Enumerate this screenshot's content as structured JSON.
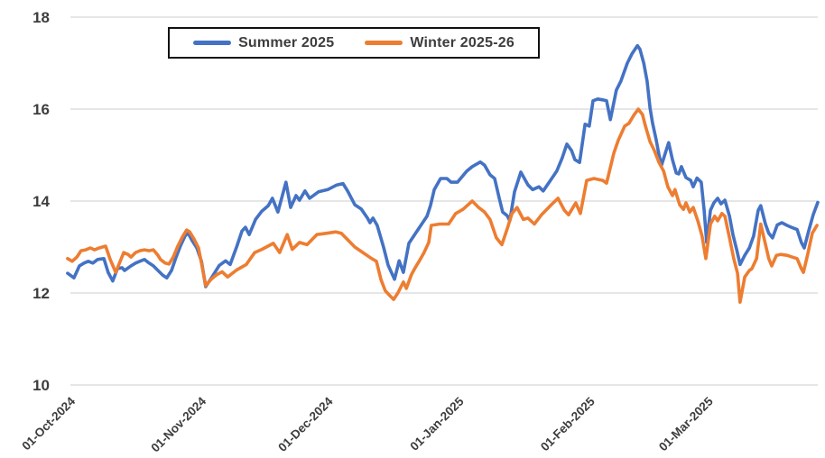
{
  "chart_data": {
    "type": "line",
    "title": "",
    "xlabel": "",
    "ylabel": "",
    "grid": "horizontal",
    "legend_position": "top-center",
    "background_color": "#ffffff",
    "gridline_color": "#d6d6d6",
    "axis_text_color": "#3d3d3d",
    "y_axis": {
      "ticks": [
        10,
        12,
        14,
        16,
        18
      ],
      "range": [
        10,
        18
      ]
    },
    "x_axis": {
      "unit": "days since 01-Oct-2024",
      "tick_labels": [
        "01-Oct-2024",
        "01-Nov-2024",
        "01-Dec-2024",
        "01-Jan-2025",
        "01-Feb-2025",
        "01-Mar-2025"
      ],
      "tick_days": [
        0,
        31,
        61,
        92,
        123,
        151
      ]
    },
    "series": [
      {
        "name": "Summer 2025",
        "color": "#4472C4",
        "points": [
          [
            -1.1,
            12.43
          ],
          [
            0.4,
            12.33
          ],
          [
            1.7,
            12.59
          ],
          [
            2.8,
            12.65
          ],
          [
            3.8,
            12.69
          ],
          [
            4.9,
            12.65
          ],
          [
            6,
            12.73
          ],
          [
            7.5,
            12.75
          ],
          [
            8.5,
            12.45
          ],
          [
            9.6,
            12.26
          ],
          [
            10.7,
            12.53
          ],
          [
            11.8,
            12.55
          ],
          [
            12.4,
            12.49
          ],
          [
            13.9,
            12.59
          ],
          [
            15,
            12.65
          ],
          [
            16,
            12.69
          ],
          [
            17.1,
            12.73
          ],
          [
            18.2,
            12.65
          ],
          [
            19.2,
            12.59
          ],
          [
            20.3,
            12.49
          ],
          [
            21.4,
            12.39
          ],
          [
            22.4,
            12.33
          ],
          [
            23.5,
            12.49
          ],
          [
            24.6,
            12.78
          ],
          [
            25.6,
            13.02
          ],
          [
            26.7,
            13.24
          ],
          [
            27.4,
            13.31
          ],
          [
            28.4,
            13.14
          ],
          [
            29.5,
            12.98
          ],
          [
            30.6,
            12.69
          ],
          [
            31.6,
            12.14
          ],
          [
            33.1,
            12.35
          ],
          [
            34.8,
            12.6
          ],
          [
            36.3,
            12.7
          ],
          [
            37.4,
            12.62
          ],
          [
            38.9,
            13
          ],
          [
            40.2,
            13.35
          ],
          [
            41,
            13.43
          ],
          [
            41.9,
            13.27
          ],
          [
            43.4,
            13.6
          ],
          [
            44.9,
            13.78
          ],
          [
            46.4,
            13.9
          ],
          [
            47.4,
            14.06
          ],
          [
            48.7,
            13.76
          ],
          [
            50.6,
            14.41
          ],
          [
            51.7,
            13.86
          ],
          [
            53,
            14.12
          ],
          [
            53.8,
            14.02
          ],
          [
            55.1,
            14.22
          ],
          [
            56.2,
            14.06
          ],
          [
            58.3,
            14.2
          ],
          [
            60.5,
            14.25
          ],
          [
            62.6,
            14.35
          ],
          [
            64.1,
            14.38
          ],
          [
            65.2,
            14.22
          ],
          [
            66.9,
            13.92
          ],
          [
            68.4,
            13.83
          ],
          [
            69.9,
            13.63
          ],
          [
            70.5,
            13.53
          ],
          [
            71.2,
            13.63
          ],
          [
            72.2,
            13.47
          ],
          [
            73.7,
            13
          ],
          [
            74.8,
            12.6
          ],
          [
            76.3,
            12.3
          ],
          [
            77.4,
            12.7
          ],
          [
            78.4,
            12.45
          ],
          [
            79.7,
            13.08
          ],
          [
            81.8,
            13.37
          ],
          [
            84,
            13.67
          ],
          [
            84.8,
            13.9
          ],
          [
            85.7,
            14.25
          ],
          [
            87.2,
            14.49
          ],
          [
            88.7,
            14.49
          ],
          [
            89.7,
            14.41
          ],
          [
            91.2,
            14.41
          ],
          [
            93.4,
            14.65
          ],
          [
            94.7,
            14.75
          ],
          [
            96.6,
            14.85
          ],
          [
            97.6,
            14.78
          ],
          [
            98.9,
            14.57
          ],
          [
            100,
            14.49
          ],
          [
            101.1,
            14.06
          ],
          [
            101.9,
            13.76
          ],
          [
            103,
            13.68
          ],
          [
            103.6,
            13.57
          ],
          [
            104.7,
            14.2
          ],
          [
            106.2,
            14.63
          ],
          [
            107.9,
            14.35
          ],
          [
            109,
            14.25
          ],
          [
            110.5,
            14.31
          ],
          [
            111.5,
            14.22
          ],
          [
            113.2,
            14.45
          ],
          [
            114.7,
            14.65
          ],
          [
            116,
            14.94
          ],
          [
            117.1,
            15.24
          ],
          [
            118.2,
            15.1
          ],
          [
            119,
            14.9
          ],
          [
            120.1,
            14.84
          ],
          [
            121.4,
            15.67
          ],
          [
            122.4,
            15.63
          ],
          [
            123.3,
            16.18
          ],
          [
            124.4,
            16.22
          ],
          [
            125.6,
            16.2
          ],
          [
            126.5,
            16.18
          ],
          [
            127.4,
            15.77
          ],
          [
            128.8,
            16.41
          ],
          [
            129.9,
            16.61
          ],
          [
            131.4,
            17
          ],
          [
            132.5,
            17.2
          ],
          [
            133.8,
            17.38
          ],
          [
            134.4,
            17.3
          ],
          [
            135.3,
            17
          ],
          [
            136.1,
            16.61
          ],
          [
            136.8,
            16.02
          ],
          [
            137.4,
            15.69
          ],
          [
            138.2,
            15.35
          ],
          [
            138.9,
            15
          ],
          [
            139.5,
            14.78
          ],
          [
            140.6,
            15.1
          ],
          [
            141.2,
            15.27
          ],
          [
            142.1,
            14.9
          ],
          [
            143,
            14.61
          ],
          [
            143.6,
            14.59
          ],
          [
            144.2,
            14.75
          ],
          [
            145.3,
            14.51
          ],
          [
            146.4,
            14.45
          ],
          [
            147,
            14.31
          ],
          [
            147.9,
            14.5
          ],
          [
            148.9,
            14.41
          ],
          [
            149.6,
            13.8
          ],
          [
            150.2,
            13.1
          ],
          [
            151.1,
            13.8
          ],
          [
            151.9,
            13.96
          ],
          [
            152.8,
            14.06
          ],
          [
            153.6,
            13.94
          ],
          [
            154.5,
            14.02
          ],
          [
            155.6,
            13.67
          ],
          [
            156.4,
            13.27
          ],
          [
            157.3,
            12.94
          ],
          [
            158.1,
            12.62
          ],
          [
            159.2,
            12.82
          ],
          [
            160.3,
            12.98
          ],
          [
            161.3,
            13.24
          ],
          [
            162.4,
            13.8
          ],
          [
            163,
            13.9
          ],
          [
            164.1,
            13.5
          ],
          [
            164.9,
            13.3
          ],
          [
            165.8,
            13.2
          ],
          [
            166.9,
            13.48
          ],
          [
            168,
            13.53
          ],
          [
            169.2,
            13.47
          ],
          [
            170.5,
            13.42
          ],
          [
            171.6,
            13.38
          ],
          [
            172.6,
            13.1
          ],
          [
            173.3,
            12.98
          ],
          [
            174.4,
            13.37
          ],
          [
            175.4,
            13.7
          ],
          [
            176.5,
            13.97
          ]
        ]
      },
      {
        "name": "Winter 2025-26",
        "color": "#ED7D31",
        "points": [
          [
            -1.1,
            12.75
          ],
          [
            0,
            12.69
          ],
          [
            1.1,
            12.78
          ],
          [
            2.1,
            12.92
          ],
          [
            3.2,
            12.94
          ],
          [
            4.3,
            12.98
          ],
          [
            5.3,
            12.94
          ],
          [
            6.4,
            12.98
          ],
          [
            7.9,
            13.02
          ],
          [
            9,
            12.73
          ],
          [
            10.3,
            12.45
          ],
          [
            12.2,
            12.88
          ],
          [
            13.2,
            12.84
          ],
          [
            13.9,
            12.78
          ],
          [
            15,
            12.88
          ],
          [
            16,
            12.92
          ],
          [
            17.1,
            12.94
          ],
          [
            18.2,
            12.92
          ],
          [
            19.2,
            12.94
          ],
          [
            20.3,
            12.82
          ],
          [
            20.9,
            12.73
          ],
          [
            22,
            12.65
          ],
          [
            22.9,
            12.63
          ],
          [
            23.9,
            12.78
          ],
          [
            25,
            13.02
          ],
          [
            26.1,
            13.22
          ],
          [
            27.1,
            13.37
          ],
          [
            27.8,
            13.33
          ],
          [
            28.8,
            13.18
          ],
          [
            29.9,
            12.98
          ],
          [
            30.6,
            12.65
          ],
          [
            31.6,
            12.16
          ],
          [
            32.9,
            12.3
          ],
          [
            34.2,
            12.4
          ],
          [
            35.5,
            12.46
          ],
          [
            36.8,
            12.35
          ],
          [
            38.9,
            12.5
          ],
          [
            41.2,
            12.62
          ],
          [
            43.2,
            12.88
          ],
          [
            44.9,
            12.95
          ],
          [
            47.6,
            13.08
          ],
          [
            49.1,
            12.88
          ],
          [
            50.9,
            13.27
          ],
          [
            52.1,
            12.95
          ],
          [
            53.8,
            13.1
          ],
          [
            55.6,
            13.05
          ],
          [
            57.9,
            13.27
          ],
          [
            60.3,
            13.3
          ],
          [
            62.4,
            13.33
          ],
          [
            63.7,
            13.3
          ],
          [
            65.2,
            13.16
          ],
          [
            66.9,
            13
          ],
          [
            68.8,
            12.88
          ],
          [
            70.9,
            12.75
          ],
          [
            72,
            12.69
          ],
          [
            73.1,
            12.29
          ],
          [
            74.1,
            12.05
          ],
          [
            75,
            11.96
          ],
          [
            76.1,
            11.86
          ],
          [
            77.1,
            12
          ],
          [
            78.4,
            12.24
          ],
          [
            79.1,
            12.1
          ],
          [
            80.3,
            12.4
          ],
          [
            81.2,
            12.55
          ],
          [
            82.5,
            12.75
          ],
          [
            83.3,
            12.88
          ],
          [
            84.4,
            13.1
          ],
          [
            85,
            13.47
          ],
          [
            87,
            13.5
          ],
          [
            89.1,
            13.5
          ],
          [
            90.8,
            13.73
          ],
          [
            92.5,
            13.82
          ],
          [
            94.7,
            14
          ],
          [
            96.2,
            13.86
          ],
          [
            97.6,
            13.76
          ],
          [
            98.9,
            13.6
          ],
          [
            100.4,
            13.2
          ],
          [
            101.7,
            13.05
          ],
          [
            103,
            13.4
          ],
          [
            104.1,
            13.73
          ],
          [
            105.3,
            13.86
          ],
          [
            106.8,
            13.6
          ],
          [
            107.9,
            13.63
          ],
          [
            109.4,
            13.5
          ],
          [
            111.1,
            13.7
          ],
          [
            113.2,
            13.9
          ],
          [
            115,
            14.06
          ],
          [
            116.5,
            13.8
          ],
          [
            117.5,
            13.7
          ],
          [
            119.2,
            13.96
          ],
          [
            120.3,
            13.73
          ],
          [
            121.8,
            14.45
          ],
          [
            123.5,
            14.49
          ],
          [
            125.6,
            14.45
          ],
          [
            126.5,
            14.39
          ],
          [
            128.2,
            15.04
          ],
          [
            129.3,
            15.33
          ],
          [
            130.8,
            15.63
          ],
          [
            131.8,
            15.69
          ],
          [
            132.9,
            15.86
          ],
          [
            134,
            16
          ],
          [
            135,
            15.88
          ],
          [
            135.7,
            15.63
          ],
          [
            136.8,
            15.29
          ],
          [
            137.8,
            15.1
          ],
          [
            138.9,
            14.84
          ],
          [
            140,
            14.65
          ],
          [
            141,
            14.31
          ],
          [
            142.1,
            14.12
          ],
          [
            142.7,
            14.25
          ],
          [
            143.8,
            13.92
          ],
          [
            144.7,
            13.82
          ],
          [
            145.3,
            13.96
          ],
          [
            146.2,
            13.76
          ],
          [
            147,
            13.86
          ],
          [
            148.1,
            13.57
          ],
          [
            149.1,
            13.24
          ],
          [
            150,
            12.75
          ],
          [
            151.1,
            13.5
          ],
          [
            152.1,
            13.67
          ],
          [
            152.8,
            13.57
          ],
          [
            153.8,
            13.73
          ],
          [
            154.5,
            13.67
          ],
          [
            155.6,
            13.2
          ],
          [
            156.6,
            12.75
          ],
          [
            157.5,
            12.43
          ],
          [
            158.1,
            11.8
          ],
          [
            159.2,
            12.35
          ],
          [
            160.3,
            12.49
          ],
          [
            160.9,
            12.53
          ],
          [
            162,
            12.75
          ],
          [
            163,
            13.5
          ],
          [
            164.1,
            13.06
          ],
          [
            164.9,
            12.75
          ],
          [
            165.6,
            12.59
          ],
          [
            166.7,
            12.82
          ],
          [
            167.7,
            12.84
          ],
          [
            169.2,
            12.82
          ],
          [
            170.5,
            12.78
          ],
          [
            171.6,
            12.75
          ],
          [
            172.6,
            12.53
          ],
          [
            173.1,
            12.45
          ],
          [
            174.1,
            12.84
          ],
          [
            175.2,
            13.3
          ],
          [
            176.3,
            13.47
          ]
        ]
      }
    ]
  }
}
